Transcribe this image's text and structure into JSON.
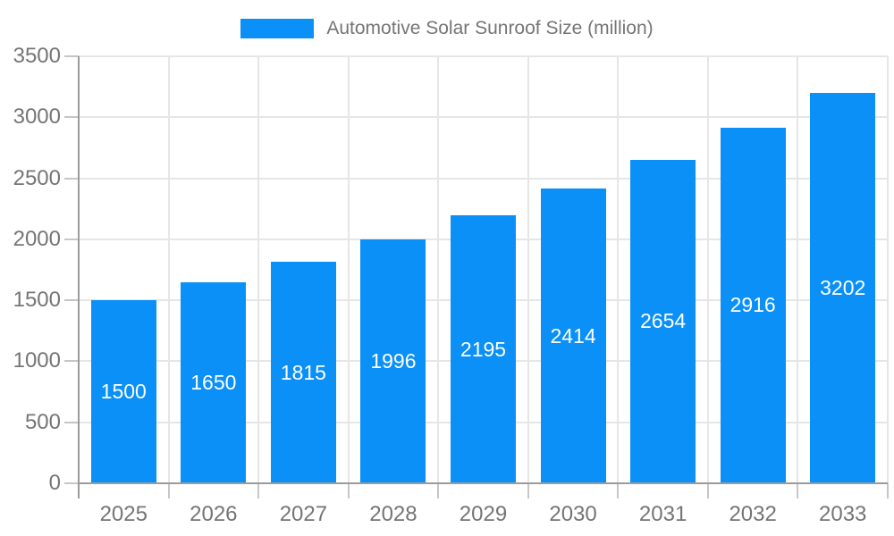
{
  "chart_data": {
    "type": "bar",
    "title": "Automotive Solar Sunroof Size (million)",
    "series_name": "Automotive Solar Sunroof Size (million)",
    "categories": [
      "2025",
      "2026",
      "2027",
      "2028",
      "2029",
      "2030",
      "2031",
      "2032",
      "2033"
    ],
    "values": [
      1500,
      1650,
      1815,
      1996,
      2195,
      2414,
      2654,
      2916,
      3202
    ],
    "xlabel": "",
    "ylabel": "",
    "ylim": [
      0,
      3500
    ],
    "yticks": [
      0,
      500,
      1000,
      1500,
      2000,
      2500,
      3000,
      3500
    ],
    "grid": true,
    "legend_position": "top-center",
    "bar_labels_inside": true,
    "colors": {
      "bar": "#0a90f6",
      "bar_label": "#ffffff",
      "axis_line": "#9b9b9b",
      "gridline": "#e6e6e6",
      "tick": "#c6c6c6",
      "tick_label": "#757575",
      "legend_text": "#757575",
      "background": "#ffffff"
    }
  }
}
